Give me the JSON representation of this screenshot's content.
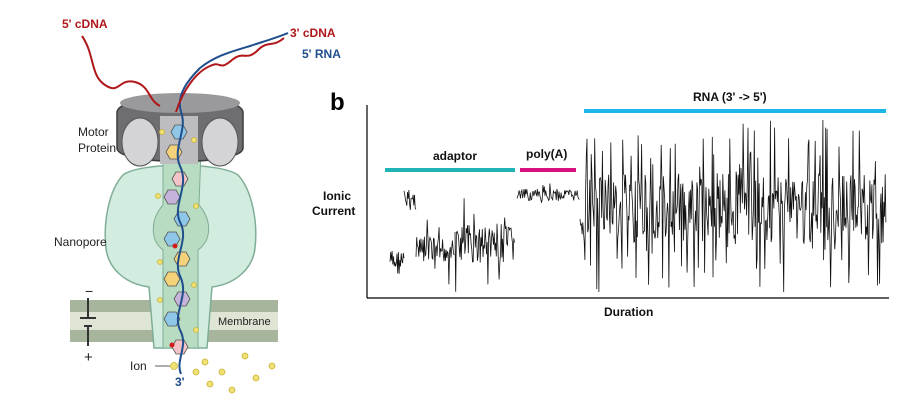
{
  "panel_a": {
    "labels": {
      "cdna_5": "5' cDNA",
      "cdna_3": "3' cDNA",
      "rna_5": "5' RNA",
      "motor": "Motor",
      "motor2": "Protein",
      "nanopore": "Nanopore",
      "membrane": "Membrane",
      "ion": "Ion",
      "rna_3": "3'",
      "minus": "−",
      "plus": "+"
    },
    "colors": {
      "cdna": "#b0171b",
      "rna": "#1f4e8c",
      "pore_fill": "#d3ece0",
      "pore_stroke": "#7fae96",
      "motor": "#6e6e70",
      "membrane": "#a8b59d",
      "ion": "#f0e070"
    }
  },
  "panel_b": {
    "panel_label": "b",
    "ylabel": [
      "Ionic",
      "Current"
    ],
    "xlabel": "Duration",
    "segments": [
      {
        "name": "adaptor",
        "color": "#1fb3b6"
      },
      {
        "name": "poly(A)",
        "color": "#d6117f"
      },
      {
        "name": "RNA (3' -> 5')",
        "color": "#1ab7e8"
      }
    ]
  }
}
